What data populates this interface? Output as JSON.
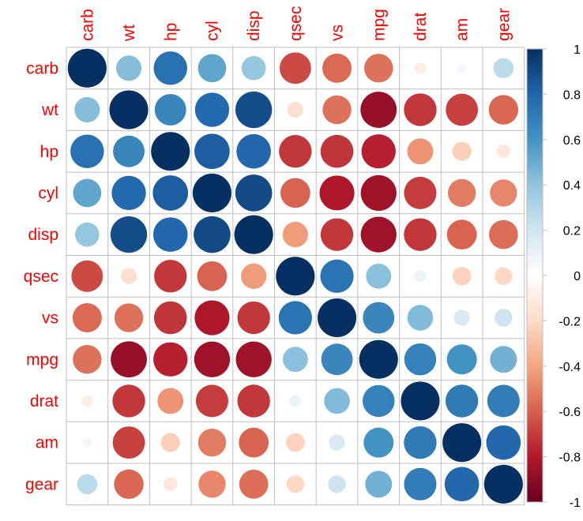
{
  "chart_data": {
    "type": "heatmap",
    "variables": [
      "carb",
      "wt",
      "hp",
      "cyl",
      "disp",
      "qsec",
      "vs",
      "mpg",
      "drat",
      "am",
      "gear"
    ],
    "matrix": [
      [
        1.0,
        0.43,
        0.75,
        0.53,
        0.39,
        -0.66,
        -0.57,
        -0.55,
        -0.09,
        0.06,
        0.27
      ],
      [
        0.43,
        1.0,
        0.66,
        0.78,
        0.89,
        -0.17,
        -0.55,
        -0.87,
        -0.71,
        -0.69,
        -0.58
      ],
      [
        0.75,
        0.66,
        1.0,
        0.83,
        0.79,
        -0.71,
        -0.72,
        -0.78,
        -0.45,
        -0.24,
        -0.13
      ],
      [
        0.53,
        0.78,
        0.83,
        1.0,
        0.9,
        -0.59,
        -0.81,
        -0.85,
        -0.7,
        -0.52,
        -0.49
      ],
      [
        0.39,
        0.89,
        0.79,
        0.9,
        1.0,
        -0.43,
        -0.71,
        -0.85,
        -0.71,
        -0.59,
        -0.56
      ],
      [
        -0.66,
        -0.17,
        -0.71,
        -0.59,
        -0.43,
        1.0,
        0.74,
        0.42,
        0.09,
        -0.23,
        -0.21
      ],
      [
        -0.57,
        -0.55,
        -0.72,
        -0.81,
        -0.71,
        0.74,
        1.0,
        0.66,
        0.44,
        0.17,
        0.21
      ],
      [
        -0.55,
        -0.87,
        -0.78,
        -0.85,
        -0.85,
        0.42,
        0.66,
        1.0,
        0.68,
        0.6,
        0.48
      ],
      [
        -0.09,
        -0.71,
        -0.45,
        -0.7,
        -0.71,
        0.09,
        0.44,
        0.68,
        1.0,
        0.71,
        0.7
      ],
      [
        0.06,
        -0.69,
        -0.24,
        -0.52,
        -0.59,
        -0.23,
        0.17,
        0.6,
        0.71,
        1.0,
        0.79
      ],
      [
        0.27,
        -0.58,
        -0.13,
        -0.49,
        -0.56,
        -0.21,
        0.21,
        0.48,
        0.7,
        0.79,
        1.0
      ]
    ],
    "method": "circle",
    "value_range": [
      -1,
      1
    ],
    "colorbar": {
      "ticks": [
        "1",
        "0.8",
        "0.6",
        "0.4",
        "0.2",
        "0",
        "-0.2",
        "-0.4",
        "-0.6",
        "-0.8",
        "-1"
      ],
      "tick_values": [
        1,
        0.8,
        0.6,
        0.4,
        0.2,
        0,
        -0.2,
        -0.4,
        -0.6,
        -0.8,
        -1
      ],
      "placement": "right"
    },
    "colors": {
      "negative_end": "#67001F",
      "neutral": "#FFFFFF",
      "positive_end": "#053061",
      "label": "#FF0000",
      "grid": "#BEBEBE",
      "tick_text": "#000000"
    },
    "title": "",
    "xlabel": "",
    "ylabel": ""
  }
}
